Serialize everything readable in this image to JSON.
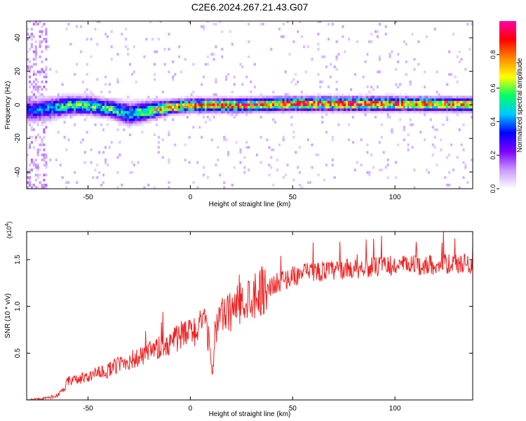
{
  "title": "C2E6.2024.267.21.43.G07",
  "chart_data": [
    {
      "type": "heatmap",
      "xlabel": "Height of straight line (km)",
      "ylabel": "Frequency (Hz)",
      "xlim": [
        -80,
        138
      ],
      "ylim": [
        -50,
        50
      ],
      "x_ticks": [
        -50,
        0,
        50,
        100
      ],
      "x_tick_labels": [
        "-50",
        "0",
        "50",
        "100"
      ],
      "y_ticks": [
        -40,
        -20,
        0,
        20,
        40
      ],
      "y_tick_labels": [
        "-40",
        "-20",
        "0",
        "20",
        "40"
      ],
      "colorbar": {
        "label": "Normalized spectral amplitude",
        "range": [
          0,
          1
        ],
        "ticks": [
          0.0,
          0.2,
          0.4,
          0.6,
          0.8
        ],
        "tick_labels": [
          "0.0",
          "0.2",
          "0.4",
          "0.6",
          "0.8"
        ],
        "colors": [
          "#ffffff",
          "#c89bff",
          "#7f00ff",
          "#0000ff",
          "#00c8ff",
          "#00ff66",
          "#ffff00",
          "#ff8800",
          "#ff0000",
          "#ff00aa"
        ]
      },
      "ridge": {
        "x": [
          -80,
          -70,
          -60,
          -50,
          -40,
          -30,
          -20,
          -10,
          0,
          20,
          50,
          80,
          100,
          138
        ],
        "center_freq": [
          -4,
          -3,
          -1,
          -1,
          -3,
          -6,
          -4,
          -2,
          -1,
          -1,
          0,
          0,
          0,
          -0.5
        ],
        "half_width": [
          5,
          5,
          4,
          4,
          4,
          5,
          4,
          3,
          3,
          3,
          3,
          3,
          3,
          3
        ],
        "peak_amplitude": [
          0.35,
          0.45,
          0.6,
          0.6,
          0.6,
          0.5,
          0.7,
          0.8,
          0.85,
          0.85,
          0.9,
          0.95,
          0.9,
          0.85
        ]
      }
    },
    {
      "type": "line",
      "xlabel": "Height of straight line (km)",
      "ylabel": "SNR (10 * v/v)",
      "y_multiplier_label": "(x10",
      "y_multiplier_exp": "4",
      "xlim": [
        -80,
        138
      ],
      "ylim": [
        0,
        1.8
      ],
      "x_ticks": [
        -50,
        0,
        50,
        100
      ],
      "x_tick_labels": [
        "-50",
        "0",
        "50",
        "100"
      ],
      "y_ticks": [
        0.5,
        1.0,
        1.5
      ],
      "y_tick_labels": [
        "0.5",
        "1.0",
        "1.5"
      ],
      "line_color": "#ee2222",
      "series": [
        {
          "x": [
            -80,
            -70,
            -65,
            -62,
            -60,
            -55,
            -50,
            -45,
            -40,
            -35,
            -30,
            -25,
            -20,
            -15,
            -12,
            -10,
            -8,
            -5,
            0,
            5,
            8,
            10,
            11,
            12,
            15,
            20,
            25,
            30,
            35,
            40,
            45,
            50,
            55,
            60,
            65,
            70,
            75,
            80,
            85,
            90,
            95,
            100,
            105,
            110,
            115,
            120,
            125,
            130,
            135,
            138
          ],
          "values": [
            0.0,
            0.02,
            0.05,
            0.1,
            0.2,
            0.22,
            0.25,
            0.28,
            0.32,
            0.38,
            0.42,
            0.45,
            0.5,
            0.55,
            0.6,
            0.62,
            0.65,
            0.68,
            0.72,
            0.78,
            0.8,
            0.45,
            0.3,
            0.75,
            0.88,
            0.95,
            1.05,
            1.12,
            1.18,
            1.22,
            1.28,
            1.32,
            1.35,
            1.37,
            1.38,
            1.38,
            1.4,
            1.4,
            1.42,
            1.42,
            1.43,
            1.43,
            1.44,
            1.44,
            1.44,
            1.45,
            1.45,
            1.45,
            1.46,
            1.46
          ]
        }
      ]
    }
  ]
}
